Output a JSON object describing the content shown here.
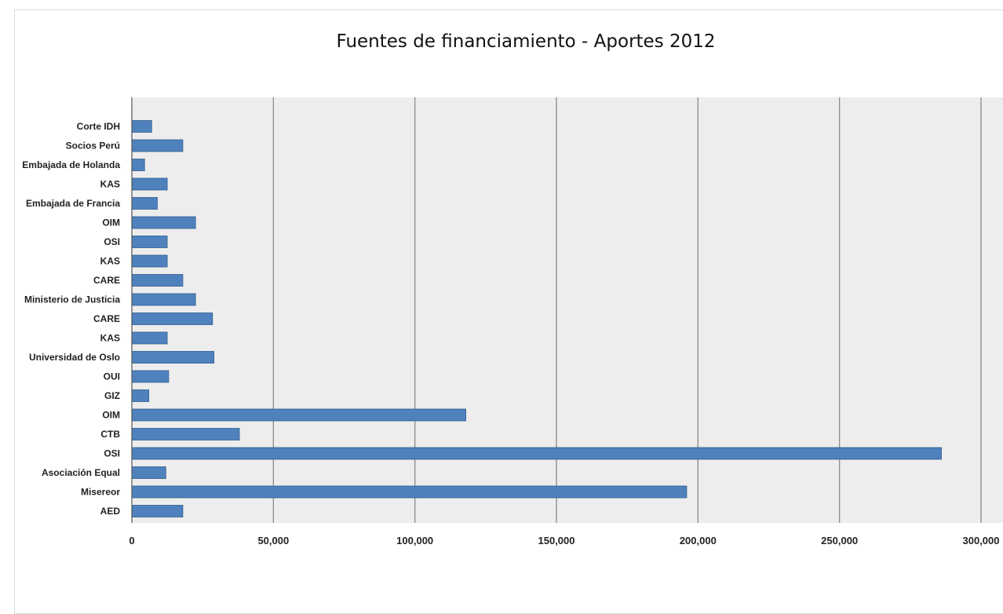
{
  "chart_data": {
    "type": "bar",
    "orientation": "horizontal",
    "title": "Fuentes de financiamiento - Aportes 2012",
    "xlabel": "",
    "ylabel": "",
    "xlim": [
      0,
      300000
    ],
    "grid": true,
    "bar_color": "#4f81bd",
    "categories": [
      "Corte IDH",
      "Socios Perú",
      "Embajada de Holanda",
      "KAS",
      "Embajada de Francia",
      "OIM",
      "OSI",
      "KAS",
      "CARE",
      "Ministerio de Justicia",
      "CARE",
      "KAS",
      "Universidad de Oslo",
      "OUI",
      "GIZ",
      "OIM",
      "CTB",
      "OSI",
      "Asociación Equal",
      "Misereor",
      "AED"
    ],
    "values": [
      7000,
      18000,
      4500,
      12500,
      9000,
      22500,
      12500,
      12500,
      18000,
      22500,
      28500,
      12500,
      29000,
      13000,
      6000,
      118000,
      38000,
      286000,
      12000,
      196000,
      18000
    ],
    "x_ticks": [
      "0",
      "50,000",
      "100,000",
      "150,000",
      "200,000",
      "250,000",
      "300,000"
    ]
  }
}
